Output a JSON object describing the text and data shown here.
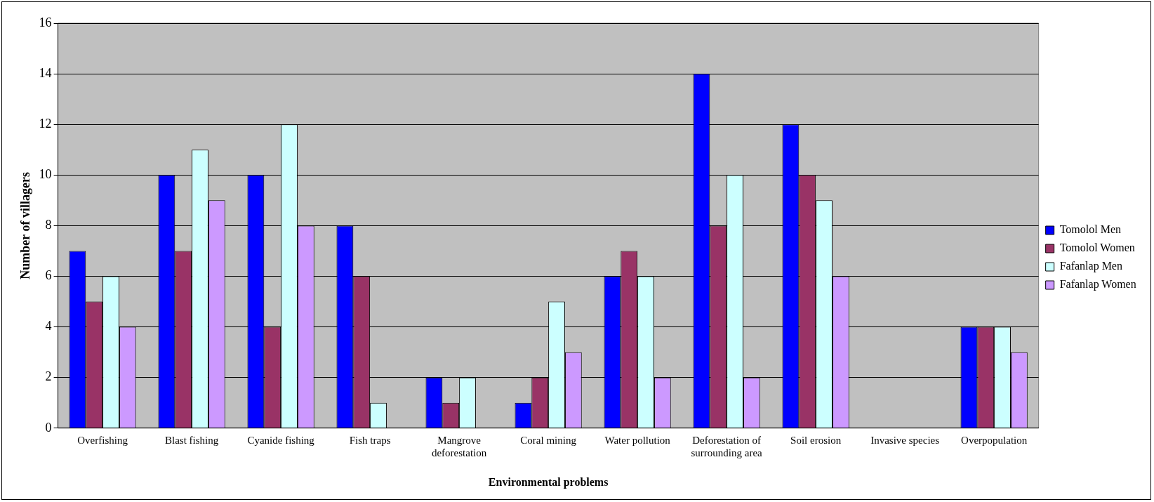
{
  "chart_data": {
    "type": "bar",
    "xlabel": "Environmental problems",
    "ylabel": "Number of villagers",
    "categories": [
      "Overfishing",
      "Blast fishing",
      "Cyanide fishing",
      "Fish traps",
      "Mangrove deforestation",
      "Coral mining",
      "Water pollution",
      "Deforestation of surrounding area",
      "Soil erosion",
      "Invasive species",
      "Overpopulation"
    ],
    "series": [
      {
        "name": "Tomolol Men",
        "color": "#0000ff",
        "values": [
          7,
          10,
          10,
          8,
          2,
          1,
          6,
          14,
          12,
          0,
          4
        ]
      },
      {
        "name": "Tomolol Women",
        "color": "#993366",
        "values": [
          5,
          7,
          4,
          6,
          1,
          2,
          7,
          8,
          10,
          0,
          4
        ]
      },
      {
        "name": "Fafanlap Men",
        "color": "#ccffff",
        "values": [
          6,
          11,
          12,
          1,
          2,
          5,
          6,
          10,
          9,
          0,
          4
        ]
      },
      {
        "name": "Fafanlap Women",
        "color": "#cc99ff",
        "values": [
          4,
          9,
          8,
          0,
          0,
          3,
          2,
          2,
          6,
          0,
          3
        ]
      }
    ],
    "ylim": [
      0,
      16
    ],
    "yticks": [
      0,
      2,
      4,
      6,
      8,
      10,
      12,
      14,
      16
    ],
    "grid": "y",
    "legend": "right"
  }
}
